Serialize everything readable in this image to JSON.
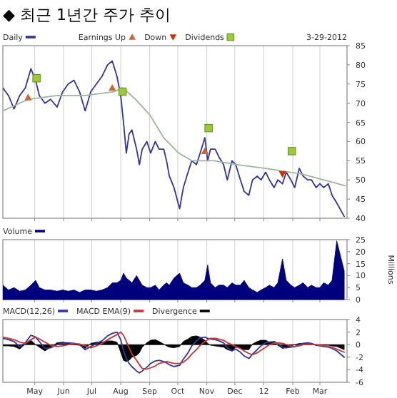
{
  "chart_data": [
    {
      "type": "line",
      "title": "◆ 최근 1년간 주가 추이",
      "legend": "top left",
      "grid": "x",
      "tick_labels": "y",
      "annotations": [
        "3-29-2012"
      ],
      "xlim": [
        "2011-03-28",
        "2012-03-30"
      ],
      "ylim": [
        40,
        85
      ],
      "yticks": [
        40,
        45,
        50,
        55,
        60,
        65,
        70,
        75,
        80,
        85
      ],
      "xticks": [
        {
          "value": "2011-05-01",
          "label": null
        },
        {
          "value": "2011-06-01",
          "label": null
        },
        {
          "value": "2011-07-01",
          "label": null
        },
        {
          "value": "2011-08-01",
          "label": null
        },
        {
          "value": "2011-09-01",
          "label": null
        },
        {
          "value": "2011-10-01",
          "label": null
        },
        {
          "value": "2011-11-01",
          "label": null
        },
        {
          "value": "2011-12-01",
          "label": null
        },
        {
          "value": "2012-01-01",
          "label": null
        },
        {
          "value": "2012-02-01",
          "label": null
        },
        {
          "value": "2012-03-01",
          "label": null
        }
      ],
      "series": [
        {
          "name": "Daily",
          "color": "#333399",
          "x": [
            "2011-03-28",
            "2011-04-03",
            "2011-04-09",
            "2011-04-15",
            "2011-04-21",
            "2011-04-27",
            "2011-05-02",
            "2011-05-06",
            "2011-05-12",
            "2011-05-18",
            "2011-05-25",
            "2011-05-31",
            "2011-06-06",
            "2011-06-12",
            "2011-06-18",
            "2011-06-24",
            "2011-06-30",
            "2011-07-06",
            "2011-07-12",
            "2011-07-18",
            "2011-07-23",
            "2011-07-28",
            "2011-08-01",
            "2011-08-04",
            "2011-08-07",
            "2011-08-10",
            "2011-08-13",
            "2011-08-18",
            "2011-08-21",
            "2011-08-24",
            "2011-08-29",
            "2011-09-02",
            "2011-09-07",
            "2011-09-11",
            "2011-09-16",
            "2011-09-19",
            "2011-09-22",
            "2011-09-27",
            "2011-10-03",
            "2011-10-07",
            "2011-10-12",
            "2011-10-16",
            "2011-10-21",
            "2011-10-25",
            "2011-10-30",
            "2011-11-02",
            "2011-11-05",
            "2011-11-10",
            "2011-11-14",
            "2011-11-19",
            "2011-11-23",
            "2011-11-28",
            "2011-12-02",
            "2011-12-07",
            "2011-12-11",
            "2011-12-16",
            "2011-12-20",
            "2011-12-25",
            "2011-12-29",
            "2012-01-03",
            "2012-01-07",
            "2012-01-12",
            "2012-01-16",
            "2012-01-21",
            "2012-01-25",
            "2012-01-30",
            "2012-02-03",
            "2012-02-08",
            "2012-02-12",
            "2012-02-17",
            "2012-02-21",
            "2012-02-26",
            "2012-03-01",
            "2012-03-05",
            "2012-03-10",
            "2012-03-14",
            "2012-03-19",
            "2012-03-27"
          ],
          "values": [
            74,
            72,
            68.5,
            72,
            74,
            79,
            76,
            72,
            70,
            71,
            69,
            73,
            75,
            76,
            73,
            68,
            73,
            75,
            77,
            80,
            81,
            77,
            72,
            65,
            57,
            62,
            63,
            58,
            54,
            58,
            60,
            57,
            60,
            58,
            58,
            55,
            51,
            48,
            42.5,
            48,
            52,
            55,
            54,
            57,
            61,
            55,
            58,
            58,
            56,
            54,
            50,
            55,
            54,
            50,
            47,
            46,
            50,
            51,
            50,
            52,
            50,
            48,
            50,
            49,
            52,
            50,
            48,
            53,
            51,
            50,
            50,
            48,
            49,
            48,
            49,
            46,
            44,
            40.5
          ]
        },
        {
          "color": "#99b899",
          "x": [
            "2011-03-28",
            "2011-04-24",
            "2011-05-25",
            "2011-06-24",
            "2011-07-25",
            "2011-08-03",
            "2011-08-17",
            "2011-09-01",
            "2011-09-16",
            "2011-10-02",
            "2011-10-16",
            "2011-11-09",
            "2011-12-02",
            "2012-01-03",
            "2012-02-11",
            "2012-03-28"
          ],
          "values": [
            68,
            71,
            72,
            72,
            73,
            74,
            71,
            67,
            61,
            57,
            55,
            55,
            54,
            53,
            51.5,
            48.5
          ]
        },
        {
          "name": "Earnings Up",
          "type": "scatter",
          "marker": "triangle",
          "color": "#cc6633",
          "x": [
            "2011-04-24",
            "2011-07-23",
            "2011-10-30"
          ],
          "values": [
            71.5,
            74,
            57.5
          ]
        },
        {
          "name": "Down",
          "type": "scatter",
          "marker": "triangle-down",
          "color": "#cc3300",
          "x": [
            "2012-01-21"
          ],
          "values": [
            51.5
          ]
        },
        {
          "name": "Dividends",
          "type": "scatter",
          "marker": "square",
          "color": "#99cc33",
          "x": [
            "2011-05-03",
            "2011-08-03",
            "2011-11-03",
            "2012-01-31"
          ],
          "values": [
            76.5,
            73,
            63.5,
            57.5
          ]
        }
      ]
    },
    {
      "type": "area",
      "legend": "top left",
      "grid": "x",
      "tick_labels": "y",
      "ylabel": "Millions",
      "xlim": [
        "2011-03-28",
        "2012-03-30"
      ],
      "ylim": [
        0,
        25
      ],
      "yticks": [
        0,
        5,
        10,
        15,
        20,
        25
      ],
      "xticks": [
        {
          "value": "2011-05-01",
          "label": null
        },
        {
          "value": "2011-06-01",
          "label": null
        },
        {
          "value": "2011-07-01",
          "label": null
        },
        {
          "value": "2011-08-01",
          "label": null
        },
        {
          "value": "2011-09-01",
          "label": null
        },
        {
          "value": "2011-10-01",
          "label": null
        },
        {
          "value": "2011-11-01",
          "label": null
        },
        {
          "value": "2011-12-01",
          "label": null
        },
        {
          "value": "2012-01-01",
          "label": null
        },
        {
          "value": "2012-02-01",
          "label": null
        },
        {
          "value": "2012-03-01",
          "label": null
        }
      ],
      "x": [
        "2011-03-28",
        "2011-04-03",
        "2011-04-09",
        "2011-04-15",
        "2011-04-21",
        "2011-04-27",
        "2011-05-02",
        "2011-05-06",
        "2011-05-12",
        "2011-05-18",
        "2011-05-25",
        "2011-05-31",
        "2011-06-06",
        "2011-06-12",
        "2011-06-18",
        "2011-06-24",
        "2011-06-30",
        "2011-07-06",
        "2011-07-12",
        "2011-07-18",
        "2011-07-23",
        "2011-07-28",
        "2011-08-01",
        "2011-08-04",
        "2011-08-07",
        "2011-08-10",
        "2011-08-13",
        "2011-08-18",
        "2011-08-21",
        "2011-08-24",
        "2011-08-29",
        "2011-09-02",
        "2011-09-07",
        "2011-09-11",
        "2011-09-16",
        "2011-09-19",
        "2011-09-22",
        "2011-09-27",
        "2011-10-03",
        "2011-10-07",
        "2011-10-12",
        "2011-10-16",
        "2011-10-21",
        "2011-10-25",
        "2011-10-30",
        "2011-11-02",
        "2011-11-05",
        "2011-11-10",
        "2011-11-14",
        "2011-11-19",
        "2011-11-23",
        "2011-11-28",
        "2011-12-02",
        "2011-12-07",
        "2011-12-11",
        "2011-12-16",
        "2011-12-20",
        "2011-12-25",
        "2011-12-29",
        "2012-01-03",
        "2012-01-07",
        "2012-01-12",
        "2012-01-16",
        "2012-01-21",
        "2012-01-25",
        "2012-01-30",
        "2012-02-03",
        "2012-02-08",
        "2012-02-12",
        "2012-02-17",
        "2012-02-21",
        "2012-02-26",
        "2012-03-01",
        "2012-03-05",
        "2012-03-10",
        "2012-03-14",
        "2012-03-19",
        "2012-03-27"
      ],
      "series": [
        {
          "name": "Volume",
          "color": "#00007f",
          "values": [
            6,
            4,
            5,
            3.5,
            4,
            6,
            8,
            5,
            4,
            4,
            3.5,
            4,
            3.5,
            4,
            3,
            4,
            4,
            3.5,
            4,
            5,
            7,
            7,
            8,
            11,
            9,
            8,
            7,
            10,
            8,
            6,
            5,
            5,
            6,
            4,
            6,
            7,
            6,
            9,
            11,
            7,
            6,
            5,
            5,
            6,
            8,
            14.5,
            7,
            5,
            6,
            6,
            5,
            7,
            6,
            6,
            8,
            5,
            4,
            3,
            4,
            5,
            6,
            5,
            7,
            17,
            8,
            6,
            5,
            6,
            7,
            5,
            6,
            5,
            5,
            7,
            6,
            8,
            24.5,
            12
          ]
        }
      ]
    },
    {
      "type": "line",
      "legend": "top left",
      "grid": "x",
      "xlim": [
        "2011-03-28",
        "2012-03-30"
      ],
      "ylim": [
        -6,
        4
      ],
      "yticks": [
        -6,
        -4,
        -2,
        0,
        2,
        4
      ],
      "xticks": [
        {
          "value": "2011-05-01",
          "label": "May"
        },
        {
          "value": "2011-06-01",
          "label": "Jun"
        },
        {
          "value": "2011-07-01",
          "label": "Jul"
        },
        {
          "value": "2011-08-01",
          "label": "Aug"
        },
        {
          "value": "2011-09-01",
          "label": "Sep"
        },
        {
          "value": "2011-10-01",
          "label": "Oct"
        },
        {
          "value": "2011-11-01",
          "label": "Nov"
        },
        {
          "value": "2011-12-01",
          "label": "Dec"
        },
        {
          "value": "2012-01-01",
          "label": "12"
        },
        {
          "value": "2012-02-01",
          "label": "Feb"
        },
        {
          "value": "2012-03-01",
          "label": "Mar"
        }
      ],
      "x": [
        "2011-03-28",
        "2011-04-03",
        "2011-04-09",
        "2011-04-15",
        "2011-04-21",
        "2011-04-27",
        "2011-05-02",
        "2011-05-06",
        "2011-05-12",
        "2011-05-18",
        "2011-05-25",
        "2011-05-31",
        "2011-06-06",
        "2011-06-12",
        "2011-06-18",
        "2011-06-24",
        "2011-06-30",
        "2011-07-06",
        "2011-07-12",
        "2011-07-18",
        "2011-07-23",
        "2011-07-28",
        "2011-08-01",
        "2011-08-04",
        "2011-08-07",
        "2011-08-10",
        "2011-08-13",
        "2011-08-18",
        "2011-08-21",
        "2011-08-24",
        "2011-08-29",
        "2011-09-02",
        "2011-09-07",
        "2011-09-11",
        "2011-09-16",
        "2011-09-19",
        "2011-09-22",
        "2011-09-27",
        "2011-10-03",
        "2011-10-07",
        "2011-10-12",
        "2011-10-16",
        "2011-10-21",
        "2011-10-25",
        "2011-10-30",
        "2011-11-02",
        "2011-11-05",
        "2011-11-10",
        "2011-11-14",
        "2011-11-19",
        "2011-11-23",
        "2011-11-28",
        "2011-12-02",
        "2011-12-07",
        "2011-12-11",
        "2011-12-16",
        "2011-12-20",
        "2011-12-25",
        "2011-12-29",
        "2012-01-03",
        "2012-01-07",
        "2012-01-12",
        "2012-01-16",
        "2012-01-21",
        "2012-01-25",
        "2012-01-30",
        "2012-02-03",
        "2012-02-08",
        "2012-02-12",
        "2012-02-17",
        "2012-02-21",
        "2012-02-26",
        "2012-03-01",
        "2012-03-05",
        "2012-03-10",
        "2012-03-14",
        "2012-03-19",
        "2012-03-27"
      ],
      "series": [
        {
          "name": "MACD(12,26)",
          "color": "#3333aa",
          "values": [
            1,
            0.8,
            0.5,
            -0.3,
            0.3,
            1.5,
            1.2,
            0.5,
            -0.6,
            -0.5,
            0,
            0.2,
            0.3,
            0.2,
            0,
            -0.8,
            -0.3,
            0.2,
            0.6,
            1.4,
            1.8,
            2,
            0.8,
            -1,
            -2.2,
            -3,
            -3.5,
            -4.2,
            -4.5,
            -4.2,
            -3.6,
            -3,
            -2.6,
            -2.5,
            -2.7,
            -2.9,
            -3.2,
            -3.5,
            -3.3,
            -2.3,
            -1.3,
            -0.2,
            0.6,
            1.1,
            1.2,
            1,
            0.9,
            0.8,
            0.6,
            0.3,
            -0.5,
            -1,
            -0.7,
            -1.2,
            -1.8,
            -2.2,
            -1.5,
            -0.8,
            -0.2,
            0.3,
            0.4,
            0.5,
            0.2,
            -0.4,
            -0.5,
            -0.4,
            -0.3,
            0,
            0.2,
            0.3,
            0.2,
            -0.1,
            -0.2,
            -0.3,
            -0.4,
            -0.6,
            -1,
            -2
          ]
        },
        {
          "name": "MACD EMA(9)",
          "color": "#cc3333",
          "values": [
            1.2,
            1,
            0.8,
            0.4,
            0.2,
            0.8,
            1.2,
            0.9,
            0.4,
            -0.1,
            -0.3,
            -0.2,
            0,
            0.2,
            0.1,
            -0.2,
            -0.5,
            -0.2,
            0.2,
            0.8,
            1.2,
            1.6,
            2,
            1.5,
            0.5,
            -0.5,
            -1.5,
            -2.5,
            -3.2,
            -3.8,
            -3.9,
            -3.7,
            -3.4,
            -3,
            -2.8,
            -2.7,
            -2.8,
            -3,
            -3,
            -2.8,
            -2.2,
            -1.5,
            -0.8,
            -0.1,
            0.5,
            0.8,
            1,
            1,
            0.9,
            0.7,
            0.3,
            0,
            -0.3,
            -0.6,
            -1,
            -1.4,
            -1.6,
            -1.3,
            -0.9,
            -0.4,
            0,
            0.2,
            0.3,
            0.2,
            0,
            -0.2,
            -0.3,
            -0.2,
            0,
            0.1,
            0.1,
            0,
            -0.1,
            -0.2,
            -0.3,
            -0.4,
            -0.7,
            -1.2
          ]
        },
        {
          "name": "Divergence",
          "type": "area",
          "color": "#000000",
          "values": [
            -0.2,
            -0.2,
            -0.3,
            -0.7,
            0.1,
            0.7,
            0,
            -0.4,
            -1,
            -0.4,
            0.3,
            0.4,
            0.3,
            0,
            -0.1,
            -0.6,
            0.2,
            0.4,
            0.4,
            0.6,
            0.6,
            0.4,
            -1.2,
            -2.5,
            -2.7,
            -2.5,
            -2,
            -1.7,
            -1.3,
            -0.4,
            0.3,
            0.7,
            0.8,
            0.5,
            0.1,
            -0.2,
            -0.4,
            -0.5,
            -0.3,
            0.5,
            0.9,
            1.3,
            1.4,
            1.2,
            0.7,
            0.2,
            -0.1,
            -0.2,
            -0.3,
            -0.4,
            -0.8,
            -1,
            -0.4,
            -0.6,
            -0.8,
            -0.8,
            0.1,
            0.5,
            0.7,
            0.7,
            0.4,
            0.3,
            -0.1,
            -0.6,
            -0.5,
            -0.2,
            0,
            0.2,
            0.2,
            0.2,
            0.1,
            -0.1,
            -0.1,
            -0.1,
            -0.1,
            -0.2,
            -0.3,
            -0.8
          ]
        }
      ]
    }
  ]
}
